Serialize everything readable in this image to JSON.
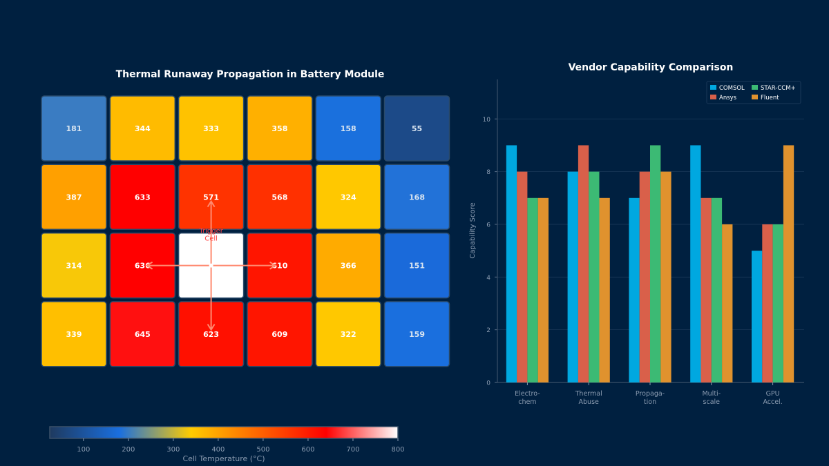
{
  "chart_data": [
    {
      "type": "heatmap",
      "title": "Thermal Runaway Propagation in Battery Module",
      "rows": [
        {
          "values": [
            181,
            344,
            333,
            358,
            158,
            55
          ],
          "colors": [
            "#3a7cc2",
            "#ffbb00",
            "#ffc200",
            "#ffb000",
            "#1a70dd",
            "#1c4a88"
          ]
        },
        {
          "values": [
            387,
            633,
            571,
            568,
            324,
            168
          ],
          "colors": [
            "#ffa000",
            "#ff0000",
            "#ff3300",
            "#ff3000",
            "#ffc800",
            "#2272d8"
          ]
        },
        {
          "values": [
            314,
            636,
            null,
            610,
            366,
            151
          ],
          "colors": [
            "#f8c808",
            "#ff0000",
            "#ffffff",
            "#ff1500",
            "#ffab00",
            "#1a6ada"
          ]
        },
        {
          "values": [
            339,
            645,
            623,
            609,
            322,
            159
          ],
          "colors": [
            "#ffbf00",
            "#ff1010",
            "#ff1000",
            "#ff1500",
            "#ffc800",
            "#1a6fde"
          ]
        }
      ],
      "trigger_label": "Trigger\nCell",
      "trigger_cell": {
        "row": 2,
        "col": 2
      },
      "colorbar": {
        "label": "Cell Temperature (°C)",
        "range": [
          25,
          800
        ],
        "ticks": [
          100,
          200,
          300,
          400,
          500,
          600,
          700,
          800
        ],
        "stops": [
          {
            "value": 25,
            "color": "#1e3a5f"
          },
          {
            "value": 180,
            "color": "#1a6fdf"
          },
          {
            "value": 340,
            "color": "#ffcc00"
          },
          {
            "value": 450,
            "color": "#ff8000"
          },
          {
            "value": 640,
            "color": "#ff0000"
          },
          {
            "value": 800,
            "color": "#ffffff"
          }
        ]
      }
    },
    {
      "type": "bar",
      "title": "Vendor Capability Comparison",
      "xlabel": "",
      "ylabel": "Capability Score",
      "ylim": [
        0,
        11.5
      ],
      "yticks": [
        0,
        2,
        4,
        6,
        8,
        10
      ],
      "grid": true,
      "legend": "top-right",
      "categories": [
        "Electro-\nchem",
        "Thermal\nAbuse",
        "Propaga-\ntion",
        "Multi-\nscale",
        "GPU\nAccel."
      ],
      "series": [
        {
          "name": "COMSOL",
          "color": "#00a8e0",
          "values": [
            9,
            8,
            7,
            9,
            5
          ]
        },
        {
          "name": "Ansys",
          "color": "#d9604a",
          "values": [
            8,
            9,
            8,
            7,
            6
          ]
        },
        {
          "name": "STAR-CCM+",
          "color": "#3cba74",
          "values": [
            7,
            8,
            9,
            7,
            6
          ]
        },
        {
          "name": "Fluent",
          "color": "#e0922e",
          "values": [
            7,
            7,
            8,
            6,
            9
          ]
        }
      ]
    }
  ]
}
